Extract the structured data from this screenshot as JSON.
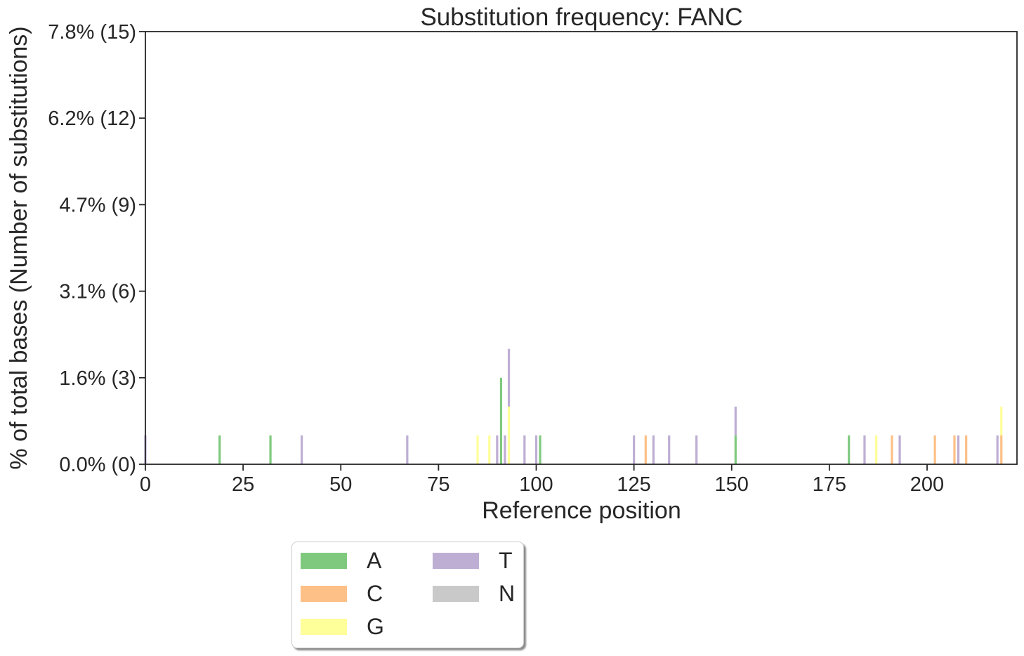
{
  "chart_data": {
    "type": "bar",
    "title": "Substitution frequency: FANC",
    "xlabel": "Reference position",
    "ylabel": "% of total bases (Number of substitutions)",
    "xlim": [
      0,
      223
    ],
    "ylim": [
      0,
      15
    ],
    "x_ticks": [
      {
        "value": 0,
        "label": "0"
      },
      {
        "value": 25,
        "label": "25"
      },
      {
        "value": 50,
        "label": "50"
      },
      {
        "value": 75,
        "label": "75"
      },
      {
        "value": 100,
        "label": "100"
      },
      {
        "value": 125,
        "label": "125"
      },
      {
        "value": 150,
        "label": "150"
      },
      {
        "value": 175,
        "label": "175"
      },
      {
        "value": 200,
        "label": "200"
      }
    ],
    "y_ticks": [
      {
        "value": 0,
        "label": "0.0% (0)"
      },
      {
        "value": 3,
        "label": "1.6% (3)"
      },
      {
        "value": 6,
        "label": "3.1% (6)"
      },
      {
        "value": 9,
        "label": "4.7% (9)"
      },
      {
        "value": 12,
        "label": "6.2% (12)"
      },
      {
        "value": 15,
        "label": "7.8% (15)"
      }
    ],
    "grid": false,
    "stacked": true,
    "legend_position": "bottom-left",
    "series": [
      {
        "name": "A",
        "color": "#7fc97f",
        "points": [
          [
            19,
            1
          ],
          [
            32,
            1
          ],
          [
            91,
            3
          ],
          [
            101,
            1
          ],
          [
            151,
            1
          ],
          [
            180,
            1
          ]
        ]
      },
      {
        "name": "C",
        "color": "#fdc086",
        "points": [
          [
            128,
            1
          ],
          [
            191,
            1
          ],
          [
            202,
            1
          ],
          [
            207,
            1
          ],
          [
            210,
            1
          ],
          [
            219,
            1
          ]
        ]
      },
      {
        "name": "G",
        "color": "#ffff99",
        "points": [
          [
            85,
            1
          ],
          [
            88,
            1
          ],
          [
            93,
            2
          ],
          [
            187,
            1
          ],
          [
            219,
            1
          ]
        ]
      },
      {
        "name": "T",
        "color": "#beaed4",
        "points": [
          [
            0,
            1
          ],
          [
            40,
            1
          ],
          [
            67,
            1
          ],
          [
            90,
            1
          ],
          [
            92,
            1
          ],
          [
            93,
            2
          ],
          [
            97,
            1
          ],
          [
            100,
            1
          ],
          [
            125,
            1
          ],
          [
            130,
            1
          ],
          [
            134,
            1
          ],
          [
            141,
            1
          ],
          [
            151,
            1
          ],
          [
            184,
            1
          ],
          [
            193,
            1
          ],
          [
            208,
            1
          ],
          [
            218,
            1
          ]
        ]
      },
      {
        "name": "N",
        "color": "#c9c9c9",
        "points": []
      }
    ]
  }
}
